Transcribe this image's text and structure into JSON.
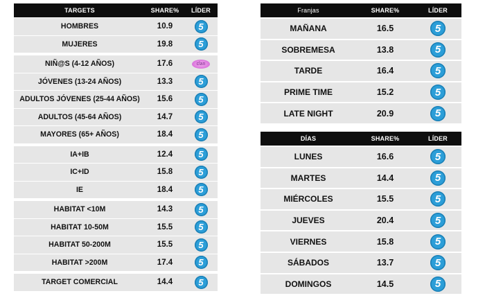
{
  "targets": {
    "headers": {
      "col1": "TARGETS",
      "col2": "SHARE%",
      "col3": "LÍDER"
    },
    "rows": [
      {
        "label": "HOMBRES",
        "share": "10.9",
        "leader": "5",
        "leader_icon": "telecinco-icon"
      },
      {
        "label": "MUJERES",
        "share": "19.8",
        "leader": "5",
        "leader_icon": "telecinco-icon"
      },
      {
        "label": "NIÑ@S (4-12 AÑOS)",
        "share": "17.6",
        "leader": "clan",
        "leader_icon": "clan-icon"
      },
      {
        "label": "JÓVENES (13-24 AÑOS)",
        "share": "13.3",
        "leader": "5",
        "leader_icon": "telecinco-icon"
      },
      {
        "label": "ADULTOS JÓVENES (25-44 AÑOS)",
        "share": "15.6",
        "leader": "5",
        "leader_icon": "telecinco-icon"
      },
      {
        "label": "ADULTOS (45-64 AÑOS)",
        "share": "14.7",
        "leader": "5",
        "leader_icon": "telecinco-icon"
      },
      {
        "label": "MAYORES (65+ AÑOS)",
        "share": "18.4",
        "leader": "5",
        "leader_icon": "telecinco-icon"
      },
      {
        "label": "IA+IB",
        "share": "12.4",
        "leader": "5",
        "leader_icon": "telecinco-icon"
      },
      {
        "label": "IC+ID",
        "share": "15.8",
        "leader": "5",
        "leader_icon": "telecinco-icon"
      },
      {
        "label": "IE",
        "share": "18.4",
        "leader": "5",
        "leader_icon": "telecinco-icon"
      },
      {
        "label": "HABITAT <10M",
        "share": "14.3",
        "leader": "5",
        "leader_icon": "telecinco-icon"
      },
      {
        "label": "HABITAT 10-50M",
        "share": "15.5",
        "leader": "5",
        "leader_icon": "telecinco-icon"
      },
      {
        "label": "HABITAT 50-200M",
        "share": "15.5",
        "leader": "5",
        "leader_icon": "telecinco-icon"
      },
      {
        "label": "HABITAT >200M",
        "share": "17.4",
        "leader": "5",
        "leader_icon": "telecinco-icon"
      },
      {
        "label": "TARGET COMERCIAL",
        "share": "14.4",
        "leader": "5",
        "leader_icon": "telecinco-icon"
      }
    ]
  },
  "franjas": {
    "headers": {
      "col1": "Franjas",
      "col2": "SHARE%",
      "col3": "LÍDER"
    },
    "rows": [
      {
        "label": "MAÑANA",
        "share": "16.5",
        "leader": "5",
        "leader_icon": "telecinco-icon"
      },
      {
        "label": "SOBREMESA",
        "share": "13.8",
        "leader": "5",
        "leader_icon": "telecinco-icon"
      },
      {
        "label": "TARDE",
        "share": "16.4",
        "leader": "5",
        "leader_icon": "telecinco-icon"
      },
      {
        "label": "PRIME TIME",
        "share": "15.2",
        "leader": "5",
        "leader_icon": "telecinco-icon"
      },
      {
        "label": "LATE NIGHT",
        "share": "20.9",
        "leader": "5",
        "leader_icon": "telecinco-icon"
      }
    ]
  },
  "dias": {
    "headers": {
      "col1": "DÍAS",
      "col2": "SHARE%",
      "col3": "LÍDER"
    },
    "rows": [
      {
        "label": "LUNES",
        "share": "16.6",
        "leader": "5",
        "leader_icon": "telecinco-icon"
      },
      {
        "label": "MARTES",
        "share": "14.4",
        "leader": "5",
        "leader_icon": "telecinco-icon"
      },
      {
        "label": "MIÉRCOLES",
        "share": "15.5",
        "leader": "5",
        "leader_icon": "telecinco-icon"
      },
      {
        "label": "JUEVES",
        "share": "20.4",
        "leader": "5",
        "leader_icon": "telecinco-icon"
      },
      {
        "label": "VIERNES",
        "share": "15.8",
        "leader": "5",
        "leader_icon": "telecinco-icon"
      },
      {
        "label": "SÁBADOS",
        "share": "13.7",
        "leader": "5",
        "leader_icon": "telecinco-icon"
      },
      {
        "label": "DOMINGOS",
        "share": "14.5",
        "leader": "5",
        "leader_icon": "telecinco-icon"
      }
    ]
  },
  "colors": {
    "header_bg": "#0e0e0e",
    "row_bg": "#e6e6e6",
    "telecinco_blue": "#2c9ed8",
    "clan_pink": "#e07ee0"
  }
}
